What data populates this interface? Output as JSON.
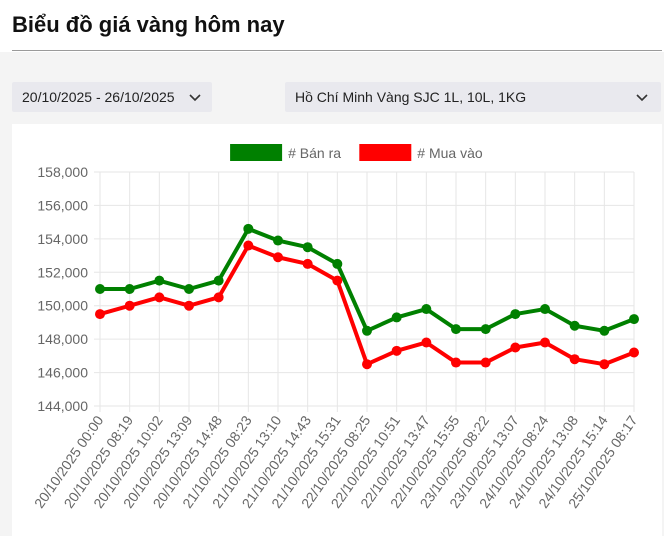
{
  "page": {
    "title": "Biểu đồ giá vàng hôm nay"
  },
  "filters": {
    "date_range": "20/10/2025 - 26/10/2025",
    "product": "Hồ Chí Minh Vàng SJC 1L, 10L, 1KG"
  },
  "icons": {
    "date_dropdown": "chevron-down-icon",
    "product_dropdown": "chevron-down-icon"
  },
  "colors": {
    "sell": "#008000",
    "buy": "#ff0000",
    "grid": "#e6e6e6",
    "background_band": "#f4f4f4"
  },
  "chart_data": {
    "type": "line",
    "title": "",
    "xlabel": "",
    "ylabel": "",
    "legend_position": "top-center",
    "grid": true,
    "ylim": [
      144000,
      158000
    ],
    "yticks": [
      "144,000",
      "146,000",
      "148,000",
      "150,000",
      "152,000",
      "154,000",
      "156,000",
      "158,000"
    ],
    "categories": [
      "20/10/2025 00:00",
      "20/10/2025 08:19",
      "20/10/2025 10:02",
      "20/10/2025 13:09",
      "20/10/2025 14:48",
      "21/10/2025 08:23",
      "21/10/2025 13:10",
      "21/10/2025 14:43",
      "21/10/2025 15:31",
      "22/10/2025 08:25",
      "22/10/2025 10:51",
      "22/10/2025 13:47",
      "22/10/2025 15:55",
      "23/10/2025 08:22",
      "23/10/2025 13:07",
      "24/10/2025 08:24",
      "24/10/2025 13:08",
      "24/10/2025 15:14",
      "25/10/2025 08:17"
    ],
    "series": [
      {
        "name": "# Bán ra",
        "color": "#008000",
        "values": [
          151000,
          151000,
          151500,
          151000,
          151500,
          154600,
          153900,
          153500,
          152500,
          148500,
          149300,
          149800,
          148600,
          148600,
          149500,
          149800,
          148800,
          148500,
          149200
        ]
      },
      {
        "name": "# Mua vào",
        "color": "#ff0000",
        "values": [
          149500,
          150000,
          150500,
          150000,
          150500,
          153600,
          152900,
          152500,
          151500,
          146500,
          147300,
          147800,
          146600,
          146600,
          147500,
          147800,
          146800,
          146500,
          147200
        ]
      }
    ]
  }
}
